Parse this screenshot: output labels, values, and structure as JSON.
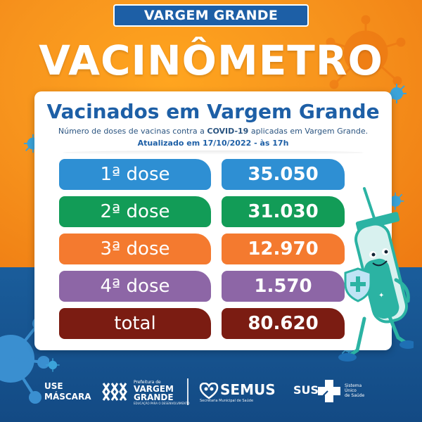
{
  "header": {
    "city_banner": "VARGEM GRANDE",
    "title": "VACINÔMETRO"
  },
  "card": {
    "title": "Vacinados em Vargem Grande",
    "subtitle_pre": "Número de doses de vacinas contra a ",
    "subtitle_bold": "COVID-19",
    "subtitle_post": " aplicadas em Vargem Grande.",
    "updated": "Atualizado em 17/10/2022 - às 17h"
  },
  "doses": [
    {
      "label": "1ª dose",
      "value": "35.050",
      "color": "#2e8fd3"
    },
    {
      "label": "2ª dose",
      "value": "31.030",
      "color": "#129c57"
    },
    {
      "label": "3ª dose",
      "value": "12.970",
      "color": "#f47a2f"
    },
    {
      "label": "4ª dose",
      "value": "1.570",
      "color": "#8d66a6"
    },
    {
      "label": "total",
      "value": "80.620",
      "color": "#7b1c12"
    }
  ],
  "footer": {
    "use_mask_line1": "USE",
    "use_mask_line2": "MÁSCARA",
    "pref_small": "Prefeitura de",
    "pref_name1": "VARGEM",
    "pref_name2": "GRANDE",
    "pref_tagline": "EDUCAÇÃO PARA O DESENVOLVIMENTO",
    "semus": "SEMUS",
    "semus_sub": "Secretaria Municipal de Saúde",
    "sus": "SUS",
    "sus_small1": "Sistema",
    "sus_small2": "Único",
    "sus_small3": "de Saúde"
  },
  "colors": {
    "orange": "#f7941d",
    "blue": "#1d5fa6",
    "dark_blue": "#134a84",
    "mascot_green": "#2bb3a3"
  },
  "icons": [
    "virus-icon",
    "mascot-syringe-icon",
    "shield-icon",
    "prefeitura-logo",
    "semus-logo",
    "sus-logo"
  ]
}
